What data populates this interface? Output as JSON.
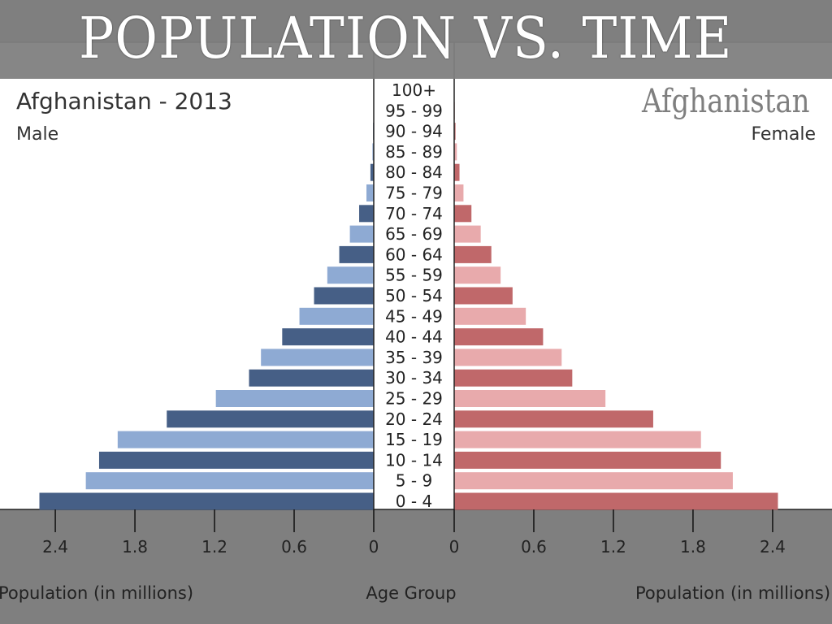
{
  "headline": "POPULATION VS. TIME",
  "caption": "Afghanistan",
  "chart_data": {
    "type": "bar",
    "orientation": "horizontal-pyramid",
    "title": "Afghanistan - 2013",
    "left_label": "Male",
    "right_label": "Female",
    "categories": [
      "0 - 4",
      "5 - 9",
      "10 - 14",
      "15 - 19",
      "20 - 24",
      "25 - 29",
      "30 - 34",
      "35 - 39",
      "40 - 44",
      "45 - 49",
      "50 - 54",
      "55 - 59",
      "60 - 64",
      "65 - 69",
      "70 - 74",
      "75 - 79",
      "80 - 84",
      "85 - 89",
      "90 - 94",
      "95 - 99",
      "100+"
    ],
    "series": [
      {
        "name": "Male",
        "side": "left",
        "values": [
          2.52,
          2.17,
          2.07,
          1.93,
          1.56,
          1.19,
          0.94,
          0.85,
          0.69,
          0.56,
          0.45,
          0.35,
          0.26,
          0.18,
          0.11,
          0.055,
          0.025,
          0.01,
          0.005,
          0.002,
          0.001
        ],
        "colors": [
          "#465f86",
          "#8eaad3"
        ]
      },
      {
        "name": "Female",
        "side": "right",
        "values": [
          2.44,
          2.1,
          2.01,
          1.86,
          1.5,
          1.14,
          0.89,
          0.81,
          0.67,
          0.54,
          0.44,
          0.35,
          0.28,
          0.2,
          0.13,
          0.07,
          0.04,
          0.02,
          0.01,
          0.005,
          0.002
        ],
        "colors": [
          "#c0686a",
          "#e8aaac"
        ]
      }
    ],
    "xticks": [
      "2.4",
      "1.8",
      "1.2",
      "0.6",
      "0"
    ],
    "xticks_right": [
      "0",
      "0.6",
      "1.2",
      "1.8",
      "2.4"
    ],
    "xlim": [
      0,
      2.6
    ],
    "xlabel_left": "Population (in millions)",
    "xlabel_center": "Age Group",
    "xlabel_right": "Population (in millions)",
    "grid": false
  }
}
